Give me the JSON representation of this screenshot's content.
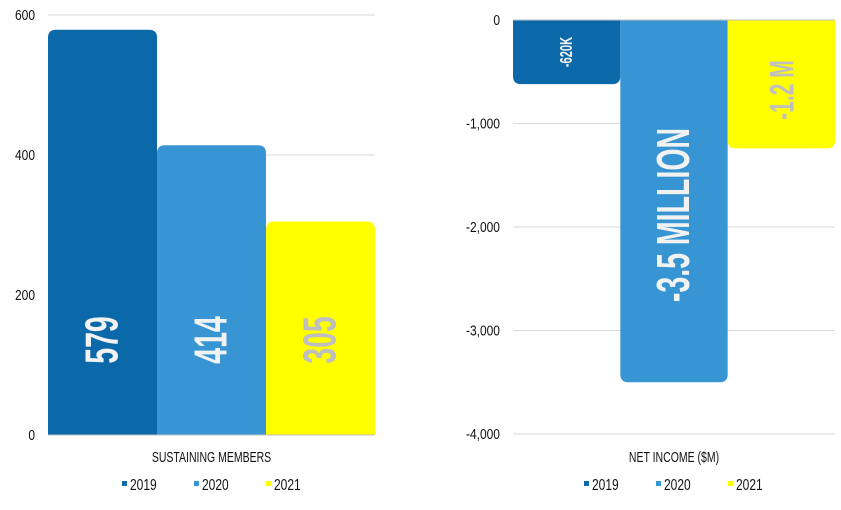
{
  "colors": {
    "2019": "#0b69aa",
    "2020": "#3895d3",
    "2021": "#ffff00",
    "label_light": "#f2f2f2",
    "label_gray": "#bfbfbf",
    "grid": "#d9d9d9"
  },
  "chart_data": [
    {
      "type": "bar",
      "title": "",
      "xlabel": "SUSTAINING MEMBERS",
      "ylabel": "",
      "ylim": [
        0,
        600
      ],
      "yticks": [
        0,
        200,
        400,
        600
      ],
      "ytick_labels": [
        "0",
        "200",
        "400",
        "600"
      ],
      "categories": [
        "2019",
        "2020",
        "2021"
      ],
      "values": [
        579,
        414,
        305
      ],
      "data_labels": [
        "579",
        "414",
        "305"
      ],
      "grid": true,
      "legend": {
        "position": "bottom",
        "entries": [
          "2019",
          "2020",
          "2021"
        ]
      }
    },
    {
      "type": "bar",
      "title": "",
      "xlabel": "NET INCOME ($M)",
      "ylabel": "",
      "ylim": [
        -4000,
        0
      ],
      "yticks": [
        0,
        -1000,
        -2000,
        -3000,
        -4000
      ],
      "ytick_labels": [
        "0",
        "-1,000",
        "-2,000",
        "-3,000",
        "-4,000"
      ],
      "categories": [
        "2019",
        "2020",
        "2021"
      ],
      "values": [
        -620,
        -3500,
        -1240
      ],
      "data_labels": [
        "-620K",
        "-3.5 MILLION",
        "-1.2 M"
      ],
      "grid": true,
      "legend": {
        "position": "bottom",
        "entries": [
          "2019",
          "2020",
          "2021"
        ]
      }
    }
  ]
}
